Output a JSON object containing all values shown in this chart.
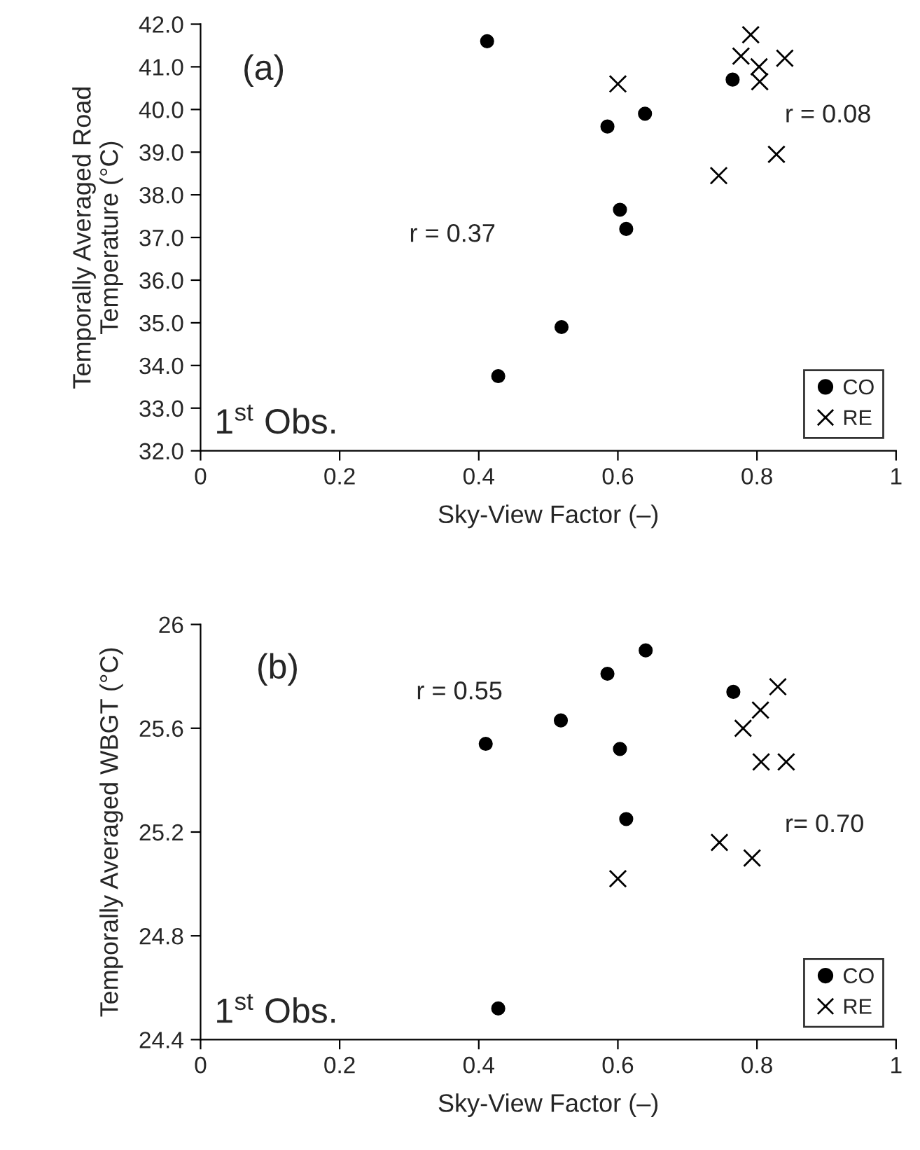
{
  "chart_data": [
    {
      "type": "scatter",
      "xlabel": "Sky-View Factor (–)",
      "ylabel": "Temporally Averaged Road\nTemperature (°C)",
      "annotations": [
        "(a)",
        "r = 0.37",
        "r = 0.08",
        "1$^{st}$ Obs."
      ],
      "xlim": [
        0,
        1
      ],
      "xticks": [
        0,
        0.2,
        0.4,
        0.6,
        0.8,
        1
      ],
      "ylim": [
        32.0,
        42.0
      ],
      "yticks": [
        {
          "value": 32,
          "label": "32.0"
        },
        {
          "value": 33,
          "label": "33.0"
        },
        {
          "value": 34,
          "label": "34.0"
        },
        {
          "value": 35,
          "label": "35.0"
        },
        {
          "value": 36,
          "label": "36.0"
        },
        {
          "value": 37,
          "label": "37.0"
        },
        {
          "value": 38,
          "label": "38.0"
        },
        {
          "value": 39,
          "label": "39.0"
        },
        {
          "value": 40,
          "label": "40.0"
        },
        {
          "value": 41,
          "label": "41.0"
        },
        {
          "value": 42,
          "label": "42.0"
        }
      ],
      "grid": false,
      "legend": "bottom right",
      "series": [
        {
          "name": "CO",
          "color": "#000000",
          "marker": "circle",
          "x": [
            0.412,
            0.765,
            0.639,
            0.585,
            0.603,
            0.612,
            0.519,
            0.428
          ],
          "values": [
            41.6,
            40.7,
            39.9,
            39.6,
            37.65,
            37.2,
            34.9,
            33.75
          ]
        },
        {
          "name": "RE",
          "color": "#000000",
          "marker": "cross",
          "x": [
            0.791,
            0.777,
            0.84,
            0.803,
            0.804,
            0.6,
            0.828,
            0.745
          ],
          "values": [
            41.75,
            41.25,
            41.2,
            41.0,
            40.65,
            40.6,
            38.95,
            38.45
          ]
        }
      ]
    },
    {
      "type": "scatter",
      "xlabel": "Sky-View Factor (–)",
      "ylabel": "Temporally Averaged WBGT (°C)",
      "annotations": [
        "(b)",
        "r = 0.55",
        "r= 0.70",
        "1$^{st}$ Obs."
      ],
      "xlim": [
        0,
        1
      ],
      "xticks": [
        0,
        0.2,
        0.4,
        0.6,
        0.8,
        1
      ],
      "ylim": [
        24.4,
        26
      ],
      "yticks": [
        24.4,
        24.8,
        25.2,
        25.6,
        26
      ],
      "grid": false,
      "legend": "bottom right",
      "series": [
        {
          "name": "CO",
          "color": "#000000",
          "marker": "circle",
          "x": [
            0.64,
            0.585,
            0.766,
            0.518,
            0.41,
            0.603,
            0.612,
            0.428
          ],
          "values": [
            25.9,
            25.81,
            25.74,
            25.63,
            25.54,
            25.52,
            25.25,
            24.52
          ]
        },
        {
          "name": "RE",
          "color": "#000000",
          "marker": "cross",
          "x": [
            0.83,
            0.805,
            0.78,
            0.806,
            0.842,
            0.746,
            0.793,
            0.6
          ],
          "values": [
            25.76,
            25.67,
            25.6,
            25.47,
            25.47,
            25.16,
            25.1,
            25.02
          ]
        }
      ]
    }
  ]
}
